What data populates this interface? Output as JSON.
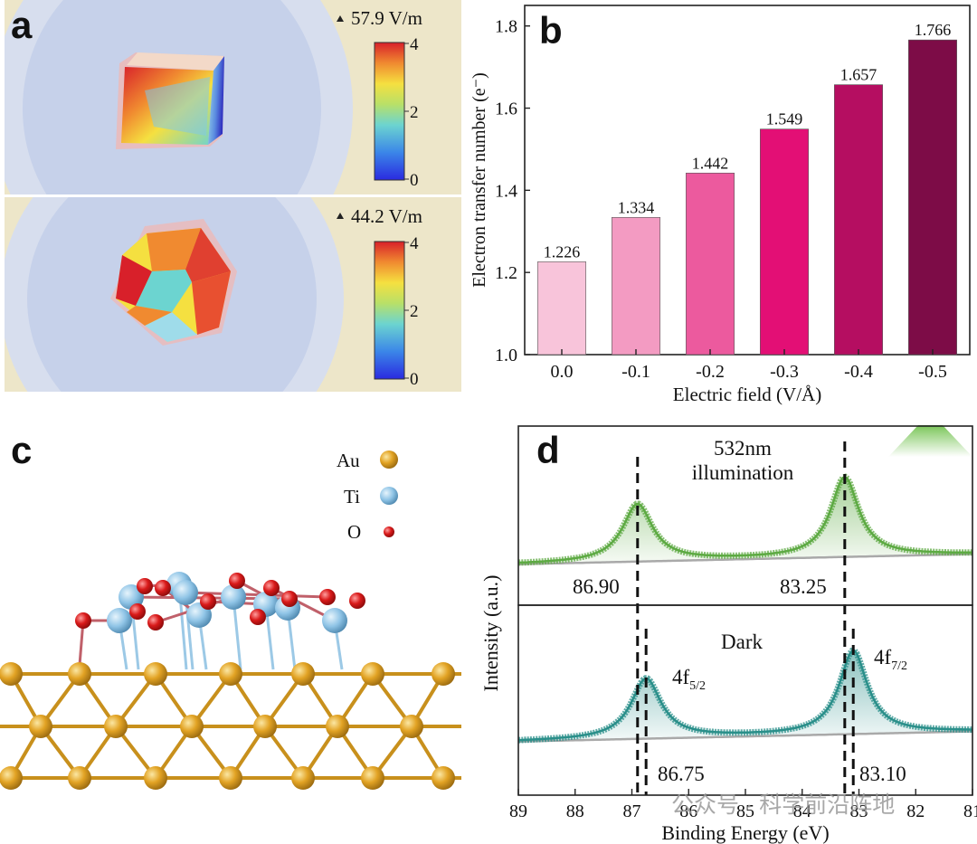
{
  "panels": {
    "a": {
      "label": "a",
      "top": {
        "max_text": "57.9 V/m",
        "ticks": [
          "4",
          "2",
          "0"
        ]
      },
      "bottom": {
        "max_text": "44.2 V/m",
        "ticks": [
          "4",
          "2",
          "0"
        ]
      }
    },
    "b": {
      "label": "b"
    },
    "c": {
      "label": "c",
      "legend": [
        {
          "element": "Au",
          "color": "#E2A324"
        },
        {
          "element": "Ti",
          "color": "#8FC4E6"
        },
        {
          "element": "O",
          "color": "#D93A3A"
        }
      ]
    },
    "d": {
      "label": "d",
      "ylabel": "Intensity (a.u.)",
      "xlabel": "Binding Energy (eV)",
      "top_title_1": "532nm",
      "top_title_2": "illumination",
      "top_peak_left": "86.90",
      "top_peak_right": "83.25",
      "bottom_title": "Dark",
      "bottom_peak_left": "86.75",
      "bottom_peak_right": "83.10",
      "orbital_left": {
        "base": "4f",
        "sub": "5/2"
      },
      "orbital_right": {
        "base": "4f",
        "sub": "7/2"
      },
      "x_ticks": [
        "89",
        "88",
        "87",
        "86",
        "85",
        "84",
        "83",
        "82",
        "81"
      ],
      "top_color": "#5DAA43",
      "bottom_color": "#2A8F8A"
    }
  },
  "chart_data": {
    "type": "bar",
    "categories": [
      "0.0",
      "-0.1",
      "-0.2",
      "-0.3",
      "-0.4",
      "-0.5"
    ],
    "values": [
      1.226,
      1.334,
      1.442,
      1.549,
      1.657,
      1.766
    ],
    "labels": [
      "1.226",
      "1.334",
      "1.442",
      "1.549",
      "1.657",
      "1.766"
    ],
    "colors": [
      "#F8C4DA",
      "#F39BC2",
      "#EC5A9E",
      "#E30F75",
      "#B50E61",
      "#7D0C47"
    ],
    "xlabel": "Electric field (V/Å)",
    "ylabel": "Electron transfer number (e⁻)",
    "ylim": [
      1.0,
      1.85
    ],
    "yticks": [
      "1.0",
      "1.2",
      "1.4",
      "1.6",
      "1.8"
    ],
    "ytick_values": [
      1.0,
      1.2,
      1.4,
      1.6,
      1.8
    ]
  },
  "watermark": "公众号 · 科学前沿阵地"
}
